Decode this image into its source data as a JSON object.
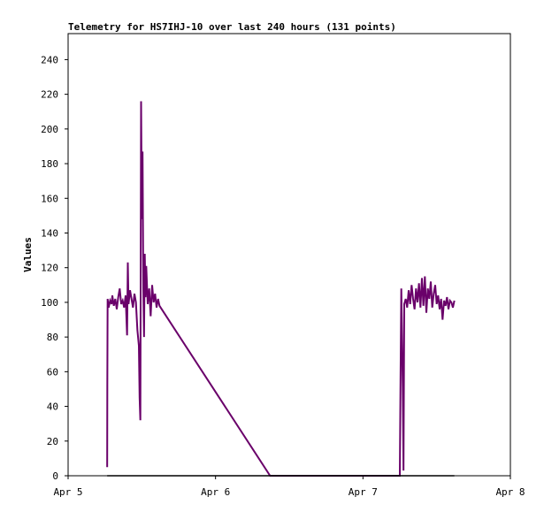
{
  "chart_data": {
    "type": "line",
    "title": "Telemetry for HS7IHJ-10 over last 240 hours (131 points)",
    "xlabel": "",
    "ylabel": "Values",
    "xlim": [
      0,
      3
    ],
    "ylim": [
      0,
      255
    ],
    "x_ticks": [
      {
        "value": 0,
        "label": "Apr 5"
      },
      {
        "value": 1,
        "label": "Apr 6"
      },
      {
        "value": 2,
        "label": "Apr 7"
      },
      {
        "value": 3,
        "label": "Apr 8"
      }
    ],
    "y_ticks": [
      0,
      20,
      40,
      60,
      80,
      100,
      120,
      140,
      160,
      180,
      200,
      220,
      240
    ],
    "grid": false,
    "colors": {
      "series_1": "#6a006a",
      "series_2": "#000000"
    },
    "series": [
      {
        "points": [
          [
            0.265,
            5
          ],
          [
            0.266,
            52
          ],
          [
            0.268,
            102
          ],
          [
            0.275,
            97
          ],
          [
            0.285,
            101
          ],
          [
            0.295,
            99
          ],
          [
            0.3,
            104
          ],
          [
            0.31,
            98
          ],
          [
            0.32,
            102
          ],
          [
            0.33,
            96
          ],
          [
            0.34,
            103
          ],
          [
            0.35,
            108
          ],
          [
            0.36,
            99
          ],
          [
            0.37,
            101
          ],
          [
            0.38,
            97
          ],
          [
            0.39,
            104
          ],
          [
            0.4,
            81
          ],
          [
            0.405,
            123
          ],
          [
            0.41,
            99
          ],
          [
            0.42,
            107
          ],
          [
            0.43,
            102
          ],
          [
            0.44,
            97
          ],
          [
            0.45,
            105
          ],
          [
            0.46,
            100
          ],
          [
            0.47,
            84
          ],
          [
            0.48,
            75
          ],
          [
            0.485,
            45
          ],
          [
            0.49,
            32
          ],
          [
            0.495,
            216
          ],
          [
            0.5,
            148
          ],
          [
            0.505,
            187
          ],
          [
            0.51,
            108
          ],
          [
            0.515,
            80
          ],
          [
            0.52,
            128
          ],
          [
            0.525,
            103
          ],
          [
            0.53,
            121
          ],
          [
            0.54,
            99
          ],
          [
            0.55,
            108
          ],
          [
            0.56,
            92
          ],
          [
            0.57,
            110
          ],
          [
            0.58,
            100
          ],
          [
            0.59,
            105
          ],
          [
            0.6,
            97
          ],
          [
            0.61,
            102
          ],
          [
            0.62,
            98
          ],
          [
            1.37,
            0
          ],
          [
            2.25,
            0
          ],
          [
            2.255,
            57
          ],
          [
            2.26,
            108
          ],
          [
            2.27,
            51
          ],
          [
            2.275,
            3
          ],
          [
            2.28,
            99
          ],
          [
            2.29,
            102
          ],
          [
            2.3,
            97
          ],
          [
            2.31,
            107
          ],
          [
            2.32,
            99
          ],
          [
            2.33,
            110
          ],
          [
            2.34,
            102
          ],
          [
            2.35,
            96
          ],
          [
            2.36,
            108
          ],
          [
            2.37,
            100
          ],
          [
            2.38,
            111
          ],
          [
            2.39,
            97
          ],
          [
            2.4,
            114
          ],
          [
            2.41,
            98
          ],
          [
            2.42,
            115
          ],
          [
            2.43,
            94
          ],
          [
            2.44,
            108
          ],
          [
            2.45,
            102
          ],
          [
            2.46,
            112
          ],
          [
            2.47,
            97
          ],
          [
            2.48,
            105
          ],
          [
            2.49,
            110
          ],
          [
            2.5,
            99
          ],
          [
            2.51,
            104
          ],
          [
            2.52,
            96
          ],
          [
            2.53,
            102
          ],
          [
            2.54,
            90
          ],
          [
            2.55,
            101
          ],
          [
            2.56,
            98
          ],
          [
            2.57,
            103
          ],
          [
            2.58,
            96
          ],
          [
            2.59,
            101
          ],
          [
            2.6,
            100
          ],
          [
            2.61,
            97
          ],
          [
            2.62,
            101
          ]
        ]
      },
      {
        "points": [
          [
            0.265,
            0
          ],
          [
            2.62,
            0
          ]
        ]
      }
    ]
  }
}
